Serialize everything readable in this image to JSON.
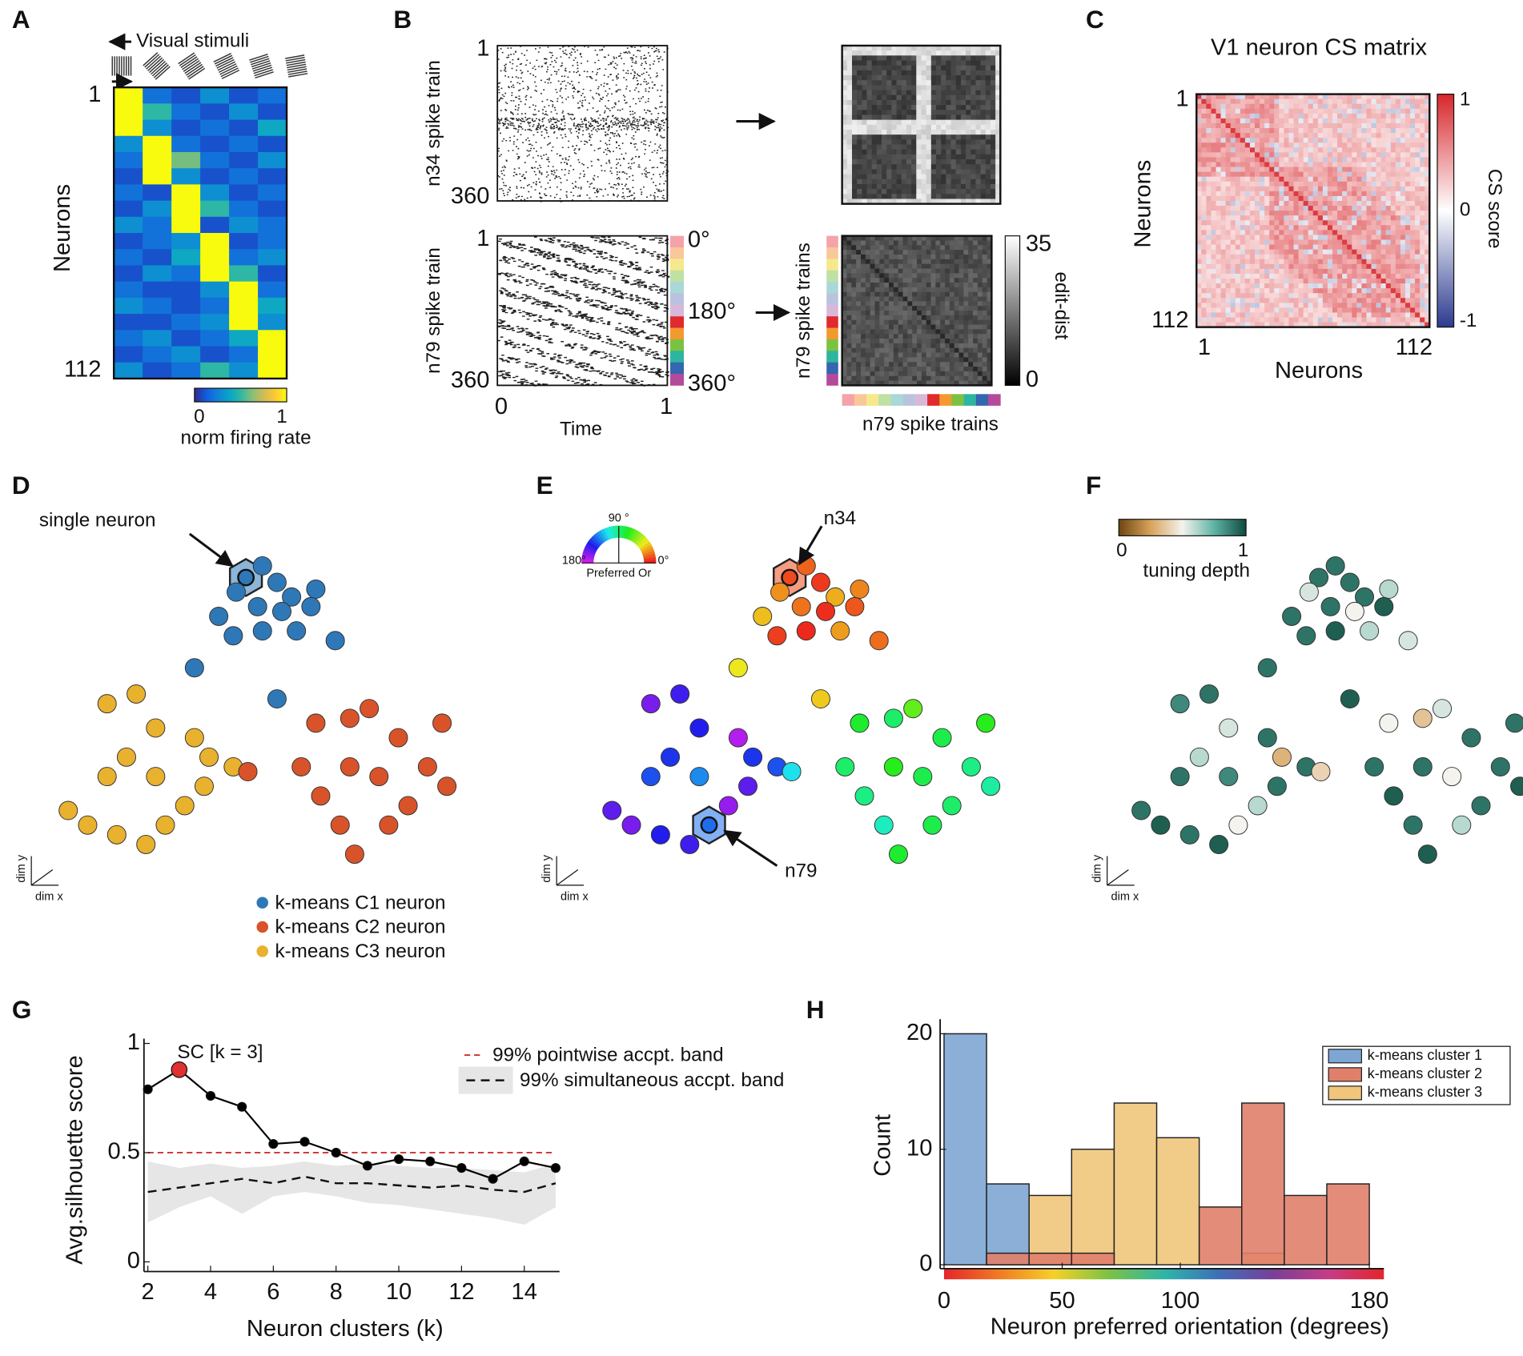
{
  "panel_labels": [
    "A",
    "B",
    "C",
    "D",
    "E",
    "F",
    "G",
    "H"
  ],
  "panel_a": {
    "stimuli_label": "Visual stimuli",
    "y_label": "Neurons",
    "neuron_ticks": [
      1,
      112
    ],
    "matrix": [
      [
        1,
        0.2,
        0.1,
        0.3,
        0.1,
        0.2
      ],
      [
        1,
        0.5,
        0.2,
        0.1,
        0.3,
        0.1
      ],
      [
        1,
        0.3,
        0.1,
        0.2,
        0.1,
        0.4
      ],
      [
        0.3,
        1,
        0.2,
        0.1,
        0.2,
        0.1
      ],
      [
        0.2,
        1,
        0.6,
        0.2,
        0.1,
        0.3
      ],
      [
        0.1,
        1,
        0.3,
        0.1,
        0.2,
        0.1
      ],
      [
        0.2,
        0.1,
        1,
        0.3,
        0.1,
        0.2
      ],
      [
        0.1,
        0.3,
        1,
        0.5,
        0.2,
        0.1
      ],
      [
        0.3,
        0.2,
        1,
        0.1,
        0.3,
        0.2
      ],
      [
        0.1,
        0.2,
        0.3,
        1,
        0.1,
        0.2
      ],
      [
        0.2,
        0.1,
        0.4,
        1,
        0.2,
        0.3
      ],
      [
        0.1,
        0.3,
        0.2,
        1,
        0.5,
        0.1
      ],
      [
        0.2,
        0.1,
        0.1,
        0.3,
        1,
        0.2
      ],
      [
        0.3,
        0.2,
        0.1,
        0.2,
        1,
        0.4
      ],
      [
        0.1,
        0.1,
        0.2,
        0.3,
        1,
        0.3
      ],
      [
        0.2,
        0.3,
        0.1,
        0.2,
        0.4,
        1
      ],
      [
        0.1,
        0.2,
        0.3,
        0.1,
        0.2,
        1
      ],
      [
        0.3,
        0.1,
        0.2,
        0.5,
        0.3,
        1
      ]
    ],
    "colorbar_label": "norm firing rate",
    "colorbar_ticks": [
      0,
      1
    ]
  },
  "panel_b": {
    "top_y_label": "n34 spike train",
    "bottom_y_label": "n79 spike train",
    "raster_ticks": [
      1,
      360
    ],
    "time_ticks": [
      0,
      1
    ],
    "x_label": "Time",
    "angle_ticks": [
      {
        "value": 0,
        "label": "0°"
      },
      {
        "value": 180,
        "label": "180°"
      },
      {
        "value": 360,
        "label": "360°"
      }
    ],
    "colorbar_ticks": [
      35,
      0
    ],
    "colorbar_label": "edit-dist",
    "matrix_axis_label": "n79 spike trains"
  },
  "panel_c": {
    "title": "V1 neuron CS matrix",
    "x_label": "Neurons",
    "y_label": "Neurons",
    "ticks": [
      1,
      112
    ],
    "colorbar_ticks": [
      1,
      0,
      -1
    ],
    "colorbar_label": "CS score"
  },
  "chart_data": [
    {
      "type": "scatter",
      "annotation": "single neuron",
      "highlight": 0,
      "x": [
        193,
        210,
        183,
        225,
        240,
        265,
        260,
        230,
        205,
        165,
        180,
        210,
        245,
        285,
        140,
        225,
        80,
        50,
        100,
        140,
        155,
        180,
        150,
        130,
        110,
        90,
        60,
        30,
        10,
        50,
        70,
        100,
        265,
        300,
        320,
        350,
        395,
        380,
        400,
        360,
        340,
        305,
        290,
        270,
        250,
        300,
        330,
        195
      ],
      "y": [
        305,
        317,
        290,
        300,
        285,
        293,
        275,
        270,
        275,
        265,
        245,
        250,
        250,
        240,
        212,
        180,
        185,
        175,
        150,
        140,
        120,
        110,
        90,
        70,
        50,
        30,
        40,
        50,
        65,
        100,
        120,
        100,
        155,
        160,
        170,
        140,
        155,
        110,
        90,
        70,
        50,
        20,
        50,
        80,
        110,
        110,
        100,
        105
      ],
      "cluster": [
        1,
        1,
        1,
        1,
        1,
        1,
        1,
        1,
        1,
        1,
        1,
        1,
        1,
        1,
        1,
        1,
        3,
        3,
        3,
        3,
        3,
        3,
        3,
        3,
        3,
        3,
        3,
        3,
        3,
        3,
        3,
        3,
        2,
        2,
        2,
        2,
        2,
        2,
        2,
        2,
        2,
        2,
        2,
        2,
        2,
        2,
        2,
        2
      ],
      "series": [
        {
          "name": "k-means C1 neuron",
          "color": "#2e78b7"
        },
        {
          "name": "k-means C2 neuron",
          "color": "#d9532a"
        },
        {
          "name": "k-means C3 neuron",
          "color": "#e8b12e"
        }
      ],
      "axis_labels": [
        "dim x",
        "dim y"
      ]
    },
    {
      "type": "scatter",
      "annotations": [
        "n34",
        "n79"
      ],
      "highlights": [
        0,
        24
      ],
      "orientation": [
        8,
        12,
        20,
        5,
        25,
        18,
        10,
        3,
        15,
        28,
        6,
        2,
        22,
        14,
        35,
        30,
        150,
        160,
        145,
        170,
        140,
        135,
        155,
        165,
        130,
        150,
        145,
        160,
        155,
        135,
        140,
        125,
        75,
        85,
        60,
        80,
        70,
        90,
        95,
        85,
        80,
        75,
        100,
        90,
        85,
        70,
        80,
        110
      ],
      "colorbar_label": "Preferred Or",
      "colorbar_ticks": [
        {
          "value": 180,
          "label": "180°"
        },
        {
          "value": 90,
          "label": "90 °"
        },
        {
          "value": 0,
          "label": "0°"
        }
      ],
      "axis_labels": [
        "dim x",
        "dim y"
      ]
    },
    {
      "type": "scatter",
      "tuning": [
        0.9,
        0.9,
        0.55,
        0.9,
        0.9,
        0.6,
        0.95,
        0.5,
        0.9,
        0.9,
        0.9,
        0.95,
        0.6,
        0.55,
        0.9,
        0.95,
        0.9,
        0.85,
        0.55,
        0.9,
        0.3,
        0.9,
        0.9,
        0.6,
        0.5,
        0.95,
        0.9,
        0.95,
        0.9,
        0.9,
        0.6,
        0.85,
        0.5,
        0.35,
        0.55,
        0.9,
        0.9,
        0.9,
        0.95,
        0.9,
        0.6,
        0.95,
        0.9,
        0.95,
        0.9,
        0.9,
        0.5,
        0.4
      ],
      "colorbar_label": "tuning depth",
      "colorbar_ticks": [
        0,
        1
      ],
      "axis_labels": [
        "dim x",
        "dim y"
      ]
    },
    {
      "type": "line",
      "x": [
        2,
        3,
        4,
        5,
        6,
        7,
        8,
        9,
        10,
        11,
        12,
        13,
        14,
        15
      ],
      "values": [
        0.79,
        0.88,
        0.76,
        0.71,
        0.54,
        0.55,
        0.5,
        0.44,
        0.47,
        0.46,
        0.43,
        0.38,
        0.46,
        0.43
      ],
      "color": "#000000",
      "highlight": 1,
      "highlight_color": "#e03030",
      "annotation": "SC [k = 3]",
      "pointwise_band": 0.5,
      "pointwise_color": "#d03030",
      "simultaneous_mean": [
        0.32,
        0.34,
        0.36,
        0.38,
        0.36,
        0.39,
        0.36,
        0.36,
        0.35,
        0.34,
        0.35,
        0.33,
        0.32,
        0.36
      ],
      "simultaneous_upper": [
        0.46,
        0.43,
        0.45,
        0.43,
        0.44,
        0.46,
        0.44,
        0.45,
        0.44,
        0.43,
        0.43,
        0.42,
        0.41,
        0.45
      ],
      "simultaneous_lower": [
        0.18,
        0.25,
        0.3,
        0.22,
        0.3,
        0.32,
        0.3,
        0.27,
        0.26,
        0.24,
        0.22,
        0.2,
        0.17,
        0.25
      ],
      "legend": [
        "99% pointwise accpt. band",
        "99% simultaneous accpt. band"
      ],
      "x_label": "Neuron clusters (k)",
      "y_label": "Avg.silhouette score",
      "xlim": [
        2,
        15
      ],
      "xticks": [
        2,
        4,
        6,
        8,
        10,
        12,
        14
      ],
      "ylim": [
        0,
        1
      ],
      "yticks": [
        0,
        0.5,
        1
      ]
    },
    {
      "type": "histogram",
      "bins": [
        0,
        18,
        36,
        54,
        72,
        90,
        108,
        126,
        144,
        162,
        180
      ],
      "series": [
        {
          "name": "k-means cluster 1",
          "color": "#7ea6d3",
          "values": [
            20,
            7,
            0,
            0,
            0,
            0,
            0,
            0,
            0,
            0
          ]
        },
        {
          "name": "k-means cluster 3",
          "color": "#f0c67c",
          "values": [
            0,
            0,
            6,
            10,
            14,
            11,
            0,
            1,
            0,
            0
          ]
        },
        {
          "name": "k-means cluster 2",
          "color": "#e0806b",
          "values": [
            0,
            1,
            1,
            1,
            0,
            0,
            5,
            14,
            6,
            7
          ]
        }
      ],
      "legend_order": [
        0,
        2,
        1
      ],
      "x_label": "Neuron preferred orientation (degrees)",
      "y_label": "Count",
      "xlim": [
        0,
        180
      ],
      "xticks": [
        0,
        50,
        100,
        180
      ],
      "ylim": [
        0,
        20
      ],
      "yticks": [
        0,
        10,
        20
      ]
    }
  ]
}
